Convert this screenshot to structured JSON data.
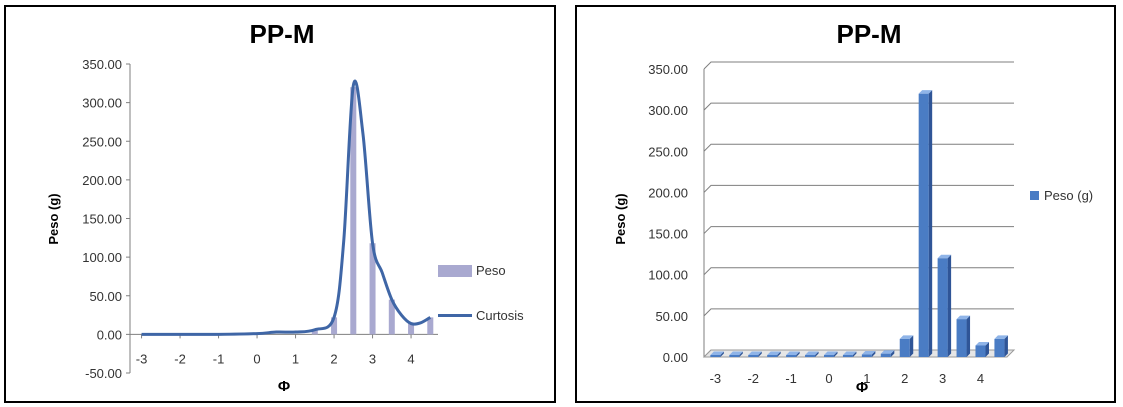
{
  "chart_data": [
    {
      "type": "bar",
      "title": "PP-M",
      "xlabel": "Φ",
      "ylabel": "Peso (g)",
      "ylim": [
        -50,
        350
      ],
      "y_ticks": [
        "-50.00",
        "0.00",
        "50.00",
        "100.00",
        "150.00",
        "200.00",
        "250.00",
        "300.00",
        "350.00"
      ],
      "x_ticks": [
        "-3",
        "-2",
        "-1",
        "0",
        "1",
        "2",
        "3",
        "4"
      ],
      "grid": false,
      "legend_position": "right",
      "series": [
        {
          "name": "Peso",
          "kind": "bar",
          "x": [
            1.5,
            2,
            2.5,
            3,
            3.5,
            4,
            4.5
          ],
          "values": [
            6,
            22,
            320,
            118,
            45,
            14,
            22
          ]
        },
        {
          "name": "Curtosis",
          "kind": "smooth-line",
          "x": [
            -3,
            -2,
            -1,
            0,
            0.5,
            1,
            1.5,
            2,
            2.25,
            2.5,
            2.75,
            3,
            3.25,
            3.5,
            3.75,
            4,
            4.25,
            4.5
          ],
          "values": [
            0,
            0,
            0,
            1,
            3,
            3,
            6,
            22,
            120,
            322,
            260,
            118,
            80,
            45,
            25,
            14,
            15,
            22
          ]
        }
      ],
      "colors": {
        "bar": "#a9a9d0",
        "line": "#3f66a6"
      }
    },
    {
      "type": "bar",
      "title": "PP-M",
      "xlabel": "Φ",
      "ylabel": "Peso (g)",
      "ylim": [
        0,
        350
      ],
      "y_ticks": [
        "0.00",
        "50.00",
        "100.00",
        "150.00",
        "200.00",
        "250.00",
        "300.00",
        "350.00"
      ],
      "x_ticks": [
        "-3",
        "-2",
        "-1",
        "0",
        "1",
        "2",
        "3",
        "4"
      ],
      "grid": true,
      "legend_position": "right",
      "series": [
        {
          "name": "Peso (g)",
          "x": [
            -3,
            -2.5,
            -2,
            -1.5,
            -1,
            -0.5,
            0,
            0.5,
            1,
            1.5,
            2,
            2.5,
            3,
            3.5,
            4,
            4.5
          ],
          "values": [
            1,
            1,
            1,
            1,
            1,
            1,
            1,
            2,
            3,
            4,
            22,
            320,
            120,
            46,
            14,
            22
          ]
        }
      ],
      "colors": {
        "bar": "#4a7cc4",
        "grid": "#7f7f7f"
      }
    }
  ]
}
